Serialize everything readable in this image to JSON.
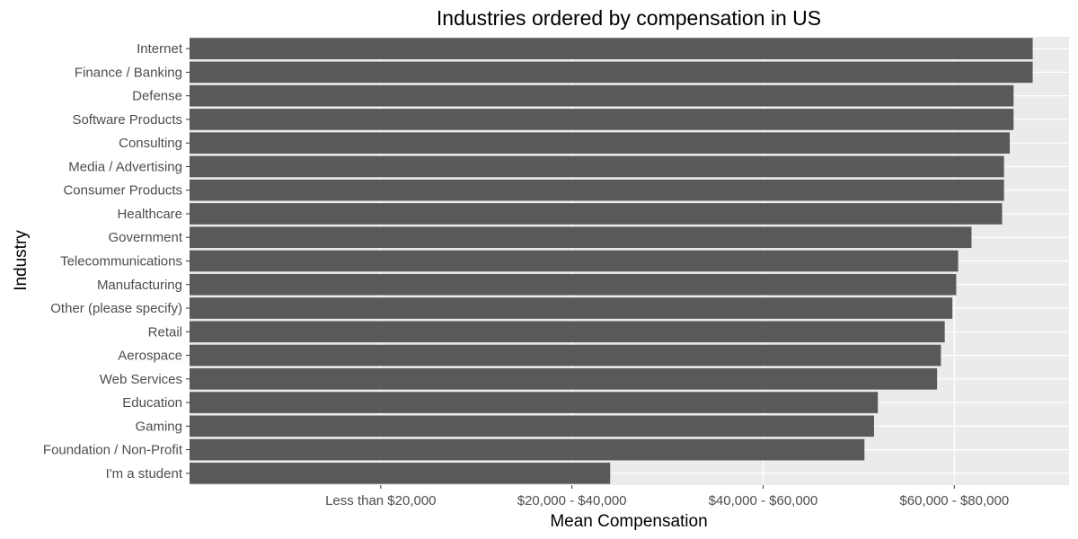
{
  "chart_data": {
    "type": "bar",
    "orientation": "horizontal",
    "title": "Industries ordered by compensation in US",
    "xlabel": "Mean Compensation",
    "ylabel": "Industry",
    "grid": true,
    "legend": "none",
    "colors": {
      "bar": "#595959",
      "panel": "#ebebeb",
      "grid": "#ffffff"
    },
    "x_ticks": [
      {
        "label": "Less than $20,000",
        "value": 1
      },
      {
        "label": "$20,000 - $40,000",
        "value": 2
      },
      {
        "label": "$40,000 - $60,000",
        "value": 3
      },
      {
        "label": "$60,000 - $80,000",
        "value": 4
      }
    ],
    "xlim": [
      0,
      4.6
    ],
    "categories": [
      "Internet",
      "Finance / Banking",
      "Defense",
      "Software Products",
      "Consulting",
      "Media / Advertising",
      "Consumer Products",
      "Healthcare",
      "Government",
      "Telecommunications",
      "Manufacturing",
      "Other (please specify)",
      "Retail",
      "Aerospace",
      "Web Services",
      "Education",
      "Gaming",
      "Foundation / Non-Profit",
      "I'm a student"
    ],
    "values": [
      4.41,
      4.41,
      4.31,
      4.31,
      4.29,
      4.26,
      4.26,
      4.25,
      4.09,
      4.02,
      4.01,
      3.99,
      3.95,
      3.93,
      3.91,
      3.6,
      3.58,
      3.53,
      2.2
    ]
  }
}
